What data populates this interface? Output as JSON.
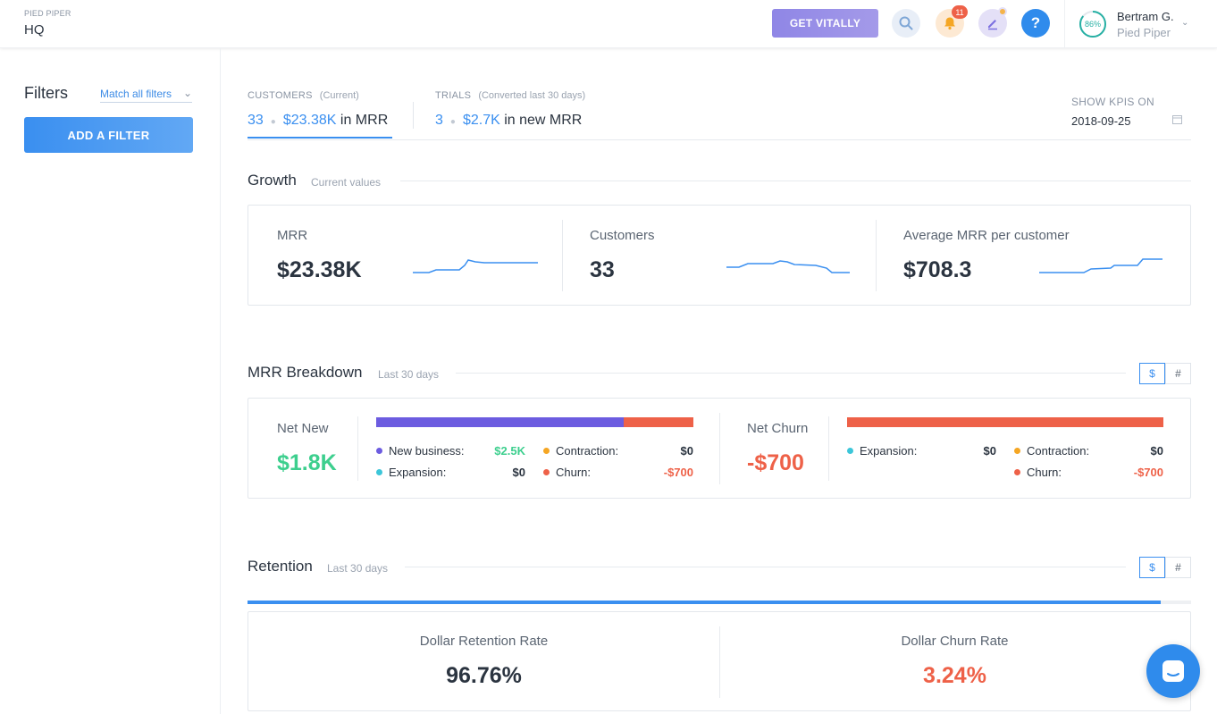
{
  "header": {
    "org_label": "PIED PIPER",
    "org_name": "HQ",
    "cta_label": "GET VITALLY",
    "notification_count": "11",
    "help_label": "?",
    "user": {
      "progress": "86%",
      "name": "Bertram G.",
      "org": "Pied Piper"
    }
  },
  "sidebar": {
    "title": "Filters",
    "match_label": "Match all filters",
    "add_filter_label": "ADD A FILTER"
  },
  "kpis": {
    "customers": {
      "label": "CUSTOMERS",
      "sub": "(Current)",
      "count": "33",
      "mrr": "$23.38K",
      "mrr_suffix": "in MRR"
    },
    "trials": {
      "label": "TRIALS",
      "sub": "(Converted last 30 days)",
      "count": "3",
      "mrr": "$2.7K",
      "mrr_suffix": "in new MRR"
    },
    "show_on_label": "SHOW KPIS ON",
    "show_on_date": "2018-09-25"
  },
  "growth": {
    "title": "Growth",
    "subtitle": "Current values",
    "metrics": [
      {
        "label": "MRR",
        "value": "$23.38K"
      },
      {
        "label": "Customers",
        "value": "33"
      },
      {
        "label": "Average MRR per customer",
        "value": "$708.3"
      }
    ]
  },
  "breakdown": {
    "title": "MRR Breakdown",
    "subtitle": "Last 30 days",
    "toggle": [
      "$",
      "#"
    ],
    "net_new": {
      "label": "Net New",
      "value": "$1.8K",
      "new_business_share": 0.78,
      "items": [
        {
          "label": "New business:",
          "value": "$2.5K"
        },
        {
          "label": "Expansion:",
          "value": "$0"
        },
        {
          "label": "Contraction:",
          "value": "$0"
        },
        {
          "label": "Churn:",
          "value": "-$700"
        }
      ]
    },
    "net_churn": {
      "label": "Net Churn",
      "value": "-$700",
      "items": [
        {
          "label": "Expansion:",
          "value": "$0"
        },
        {
          "label": "Contraction:",
          "value": "$0"
        },
        {
          "label": "Churn:",
          "value": "-$700"
        }
      ]
    }
  },
  "retention": {
    "title": "Retention",
    "subtitle": "Last 30 days",
    "toggle": [
      "$",
      "#"
    ],
    "dollar_retention_label": "Dollar Retention Rate",
    "dollar_retention_value": "96.76%",
    "dollar_churn_label": "Dollar Churn Rate",
    "dollar_churn_value": "3.24%"
  },
  "colors": {
    "blue": "#3a8ff0",
    "green": "#3dcf8e",
    "orange": "#ee6148",
    "purple": "#6c5ce0",
    "teal": "#3cc6d9",
    "amber": "#f5a623"
  }
}
